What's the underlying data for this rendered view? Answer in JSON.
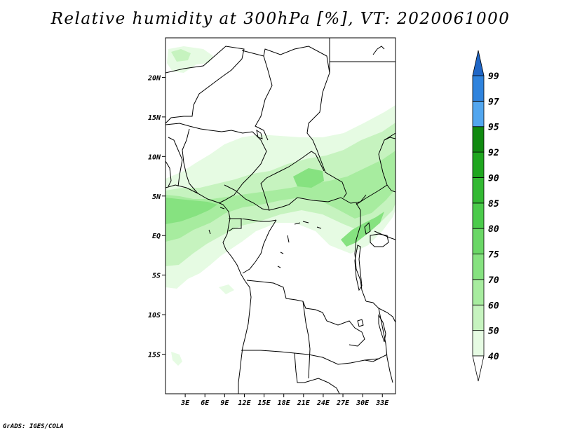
{
  "title": "Relative humidity at 300hPa [%], VT: 2020061000",
  "credit": "GrADS: IGES/COLA",
  "map": {
    "lon_range": [
      0,
      35
    ],
    "lat_range": [
      -20,
      25
    ],
    "lon_ticks": [
      {
        "value": 3,
        "label": "3E"
      },
      {
        "value": 6,
        "label": "6E"
      },
      {
        "value": 9,
        "label": "9E"
      },
      {
        "value": 12,
        "label": "12E"
      },
      {
        "value": 15,
        "label": "15E"
      },
      {
        "value": 18,
        "label": "18E"
      },
      {
        "value": 21,
        "label": "21E"
      },
      {
        "value": 24,
        "label": "24E"
      },
      {
        "value": 27,
        "label": "27E"
      },
      {
        "value": 30,
        "label": "30E"
      },
      {
        "value": 33,
        "label": "33E"
      }
    ],
    "lat_ticks": [
      {
        "value": 20,
        "label": "20N"
      },
      {
        "value": 15,
        "label": "15N"
      },
      {
        "value": 10,
        "label": "10N"
      },
      {
        "value": 5,
        "label": "5N"
      },
      {
        "value": 0,
        "label": "EQ"
      },
      {
        "value": -5,
        "label": "5S"
      },
      {
        "value": -10,
        "label": "10S"
      },
      {
        "value": -15,
        "label": "15S"
      }
    ]
  },
  "colorbar": {
    "levels": [
      "40",
      "50",
      "60",
      "70",
      "75",
      "80",
      "85",
      "90",
      "92",
      "95",
      "97",
      "99"
    ],
    "colors": [
      "#e6fbe3",
      "#c6f3bf",
      "#a7ec9f",
      "#86e280",
      "#6ad766",
      "#4bcb4b",
      "#33b933",
      "#1fa61f",
      "#108a10",
      "#52a6ef",
      "#2f83dd",
      "#1f66c6"
    ],
    "low_end_color": "#ffffff",
    "high_end_color": "#1f66c6"
  }
}
